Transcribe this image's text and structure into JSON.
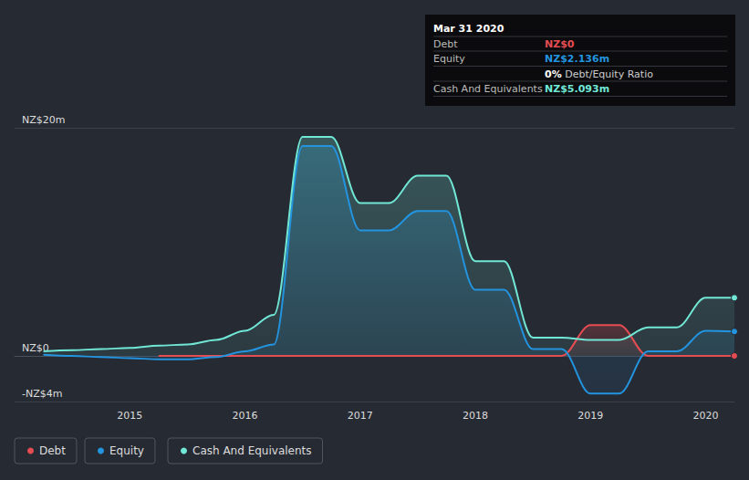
{
  "chart_data": {
    "type": "line",
    "x": [
      2014.25,
      2014.5,
      2014.75,
      2015,
      2015.25,
      2015.5,
      2015.75,
      2016,
      2016.25,
      2016.5,
      2016.75,
      2017,
      2017.25,
      2017.5,
      2017.75,
      2018,
      2018.25,
      2018.5,
      2018.75,
      2019,
      2019.25,
      2019.5,
      2019.75,
      2020,
      2020.25
    ],
    "xlim": [
      2014,
      2020.25
    ],
    "xticks": [
      2015,
      2016,
      2017,
      2018,
      2019,
      2020
    ],
    "ylim": [
      -4,
      20
    ],
    "yticks": [
      {
        "value": -4,
        "label": "-NZ$4m"
      },
      {
        "value": 0,
        "label": "NZ$0"
      },
      {
        "value": 20,
        "label": "NZ$20m"
      }
    ],
    "grid": true,
    "legend": "bottom left",
    "marker": "circle",
    "series": [
      {
        "name": "Debt",
        "color": "#e64d53",
        "values": [
          null,
          null,
          null,
          null,
          0,
          0,
          0,
          0,
          0,
          0,
          0,
          0,
          0,
          0,
          0,
          0,
          0,
          0,
          0,
          2.7,
          2.7,
          0,
          0,
          0,
          0
        ]
      },
      {
        "name": "Equity",
        "color": "#2394df",
        "values": [
          0.1,
          0.0,
          -0.1,
          -0.2,
          -0.3,
          -0.3,
          -0.1,
          0.4,
          1.0,
          18.4,
          18.4,
          11.0,
          11.0,
          12.7,
          12.7,
          5.8,
          5.8,
          0.6,
          0.6,
          -3.3,
          -3.3,
          0.4,
          0.4,
          2.2,
          2.136
        ]
      },
      {
        "name": "Cash And Equivalents",
        "color": "#71e7d6",
        "values": [
          0.4,
          0.5,
          0.6,
          0.7,
          0.9,
          1.0,
          1.4,
          2.2,
          3.6,
          19.2,
          19.2,
          13.4,
          13.4,
          15.8,
          15.8,
          8.3,
          8.3,
          1.6,
          1.6,
          1.4,
          1.4,
          2.5,
          2.5,
          5.1,
          5.093
        ]
      }
    ],
    "annotation": {
      "title": "Mar 31 2020",
      "rows": [
        {
          "label": "Debt",
          "value": "NZ$0"
        },
        {
          "label": "Equity",
          "value": "NZ$2.136m"
        },
        {
          "ratio": "0%",
          "label": "Debt/Equity Ratio"
        },
        {
          "label": "Cash And Equivalents",
          "value": "NZ$5.093m"
        }
      ]
    }
  }
}
